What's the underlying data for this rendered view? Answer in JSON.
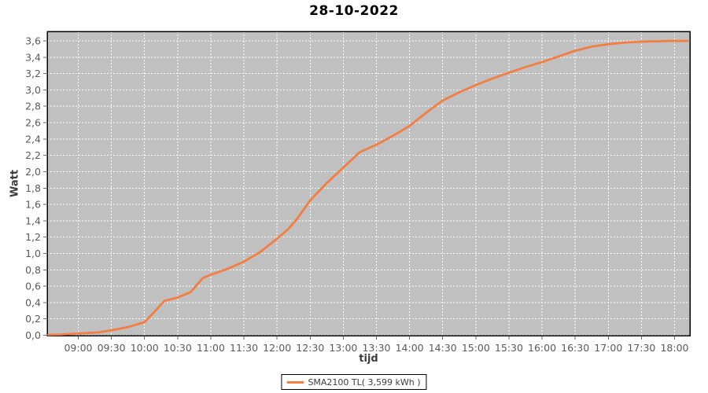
{
  "title": "28-10-2022",
  "legend": {
    "label": "SMA2100 TL( 3,599 kWh )"
  },
  "colors": {
    "line": "#f47d42",
    "plot_bg": "#c0c0c0",
    "grid": "#ffffff",
    "plot_border": "#000000",
    "tick_mark": "#6b6b6b",
    "tick_text": "#5a5a5a",
    "axis_title_text": "#3d3d3d",
    "title_text": "#000000"
  },
  "chart_data": {
    "type": "line",
    "title": "28-10-2022",
    "xlabel": "tijd",
    "ylabel": "Watt",
    "grid": "on",
    "legend_position": "bottom-center",
    "x_range_hours": [
      8.53,
      18.23
    ],
    "y_range": [
      0,
      3.72
    ],
    "x_ticks": [
      {
        "t": 9.0,
        "label": "09:00"
      },
      {
        "t": 9.5,
        "label": "09:30"
      },
      {
        "t": 10.0,
        "label": "10:00"
      },
      {
        "t": 10.5,
        "label": "10:30"
      },
      {
        "t": 11.0,
        "label": "11:00"
      },
      {
        "t": 11.5,
        "label": "11:30"
      },
      {
        "t": 12.0,
        "label": "12:00"
      },
      {
        "t": 12.5,
        "label": "12:30"
      },
      {
        "t": 13.0,
        "label": "13:00"
      },
      {
        "t": 13.5,
        "label": "13:30"
      },
      {
        "t": 14.0,
        "label": "14:00"
      },
      {
        "t": 14.5,
        "label": "14:30"
      },
      {
        "t": 15.0,
        "label": "15:00"
      },
      {
        "t": 15.5,
        "label": "15:30"
      },
      {
        "t": 16.0,
        "label": "16:00"
      },
      {
        "t": 16.5,
        "label": "16:30"
      },
      {
        "t": 17.0,
        "label": "17:00"
      },
      {
        "t": 17.5,
        "label": "17:30"
      },
      {
        "t": 18.0,
        "label": "18:00"
      }
    ],
    "y_ticks": [
      {
        "v": 0.0,
        "label": "0,0"
      },
      {
        "v": 0.2,
        "label": "0,2"
      },
      {
        "v": 0.4,
        "label": "0,4"
      },
      {
        "v": 0.6,
        "label": "0,6"
      },
      {
        "v": 0.8,
        "label": "0,8"
      },
      {
        "v": 1.0,
        "label": "1,0"
      },
      {
        "v": 1.2,
        "label": "1,2"
      },
      {
        "v": 1.4,
        "label": "1,4"
      },
      {
        "v": 1.6,
        "label": "1,6"
      },
      {
        "v": 1.8,
        "label": "1,8"
      },
      {
        "v": 2.0,
        "label": "2,0"
      },
      {
        "v": 2.2,
        "label": "2,2"
      },
      {
        "v": 2.4,
        "label": "2,4"
      },
      {
        "v": 2.6,
        "label": "2,6"
      },
      {
        "v": 2.8,
        "label": "2,8"
      },
      {
        "v": 3.0,
        "label": "3,0"
      },
      {
        "v": 3.2,
        "label": "3,2"
      },
      {
        "v": 3.4,
        "label": "3,4"
      },
      {
        "v": 3.6,
        "label": "3,6"
      }
    ],
    "series": [
      {
        "name": "SMA2100 TL( 3,599 kWh )",
        "color": "#f47d42",
        "total_kwh_label": "3,599 kWh",
        "points": [
          [
            8.55,
            0.005
          ],
          [
            8.75,
            0.01
          ],
          [
            9.0,
            0.02
          ],
          [
            9.3,
            0.035
          ],
          [
            9.5,
            0.06
          ],
          [
            9.75,
            0.1
          ],
          [
            10.0,
            0.16
          ],
          [
            10.13,
            0.27
          ],
          [
            10.3,
            0.42
          ],
          [
            10.5,
            0.46
          ],
          [
            10.7,
            0.53
          ],
          [
            10.88,
            0.7
          ],
          [
            11.0,
            0.74
          ],
          [
            11.25,
            0.81
          ],
          [
            11.5,
            0.9
          ],
          [
            11.75,
            1.02
          ],
          [
            12.0,
            1.18
          ],
          [
            12.17,
            1.3
          ],
          [
            12.3,
            1.42
          ],
          [
            12.5,
            1.65
          ],
          [
            12.75,
            1.86
          ],
          [
            13.0,
            2.05
          ],
          [
            13.25,
            2.24
          ],
          [
            13.5,
            2.33
          ],
          [
            13.75,
            2.44
          ],
          [
            14.0,
            2.56
          ],
          [
            14.25,
            2.72
          ],
          [
            14.5,
            2.87
          ],
          [
            14.75,
            2.97
          ],
          [
            15.0,
            3.06
          ],
          [
            15.25,
            3.14
          ],
          [
            15.5,
            3.21
          ],
          [
            15.75,
            3.28
          ],
          [
            16.0,
            3.34
          ],
          [
            16.25,
            3.41
          ],
          [
            16.5,
            3.48
          ],
          [
            16.75,
            3.53
          ],
          [
            17.0,
            3.56
          ],
          [
            17.25,
            3.58
          ],
          [
            17.5,
            3.59
          ],
          [
            17.75,
            3.595
          ],
          [
            18.0,
            3.6
          ],
          [
            18.2,
            3.599
          ]
        ]
      }
    ]
  }
}
